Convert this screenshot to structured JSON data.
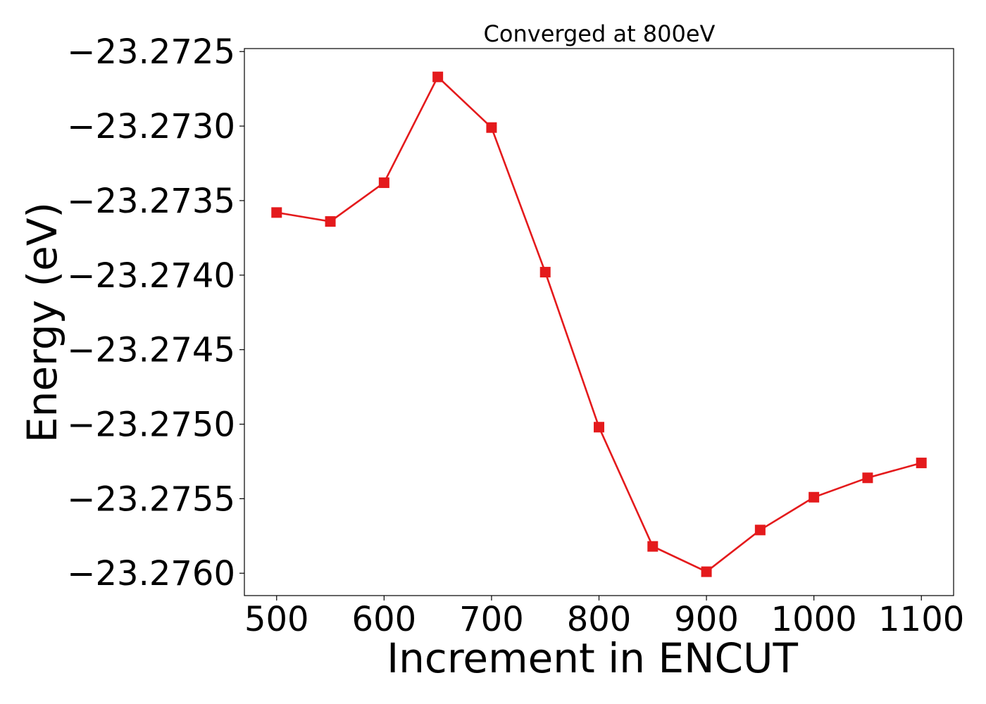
{
  "chart_data": {
    "type": "line",
    "title": "Converged at 800eV",
    "xlabel": "Increment in ENCUT",
    "ylabel": "Energy (eV)",
    "x": [
      500,
      550,
      600,
      650,
      700,
      750,
      800,
      850,
      900,
      950,
      1000,
      1050,
      1100
    ],
    "series": [
      {
        "values": [
          -23.27358,
          -23.27364,
          -23.27338,
          -23.27267,
          -23.27301,
          -23.27398,
          -23.27502,
          -23.27582,
          -23.27599,
          -23.27571,
          -23.27549,
          -23.27536,
          -23.27526
        ],
        "color": "#e41a1c",
        "marker": "square"
      }
    ],
    "xlim": [
      470,
      1130
    ],
    "ylim": [
      -23.27615,
      -23.27248
    ],
    "xticks": [
      500,
      600,
      700,
      800,
      900,
      1000,
      1100
    ],
    "xtick_labels": [
      "500",
      "600",
      "700",
      "800",
      "900",
      "1000",
      "1100"
    ],
    "yticks": [
      -23.2725,
      -23.273,
      -23.2735,
      -23.274,
      -23.2745,
      -23.275,
      -23.2755,
      -23.276
    ],
    "ytick_labels": [
      "−23.2725",
      "−23.2730",
      "−23.2735",
      "−23.2740",
      "−23.2745",
      "−23.2750",
      "−23.2755",
      "−23.2760"
    ],
    "grid": false,
    "legend": "none"
  }
}
